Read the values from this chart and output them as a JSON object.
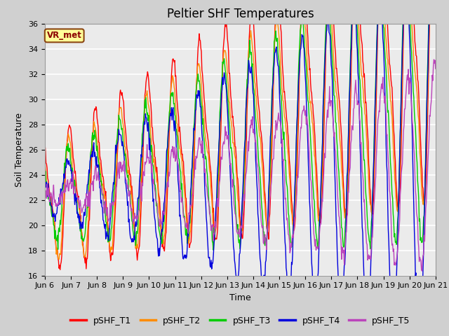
{
  "title": "Peltier SHF Temperatures",
  "xlabel": "Time",
  "ylabel": "Soil Temperature",
  "ylim": [
    16,
    36
  ],
  "annotation": "VR_met",
  "x_tick_labels": [
    "Jun 6",
    "Jun 7",
    "Jun 8",
    "Jun 9",
    "Jun 10",
    "Jun 11",
    "Jun 12",
    "Jun 13",
    "Jun 14",
    "Jun 15",
    "Jun 16",
    "Jun 17",
    "Jun 18",
    "Jun 19",
    "Jun 20",
    "Jun 21"
  ],
  "series_names": [
    "pSHF_T1",
    "pSHF_T2",
    "pSHF_T3",
    "pSHF_T4",
    "pSHF_T5"
  ],
  "series_colors": [
    "#ff0000",
    "#ff8c00",
    "#00cc00",
    "#0000dd",
    "#bb44bb"
  ],
  "series_lw": [
    1.0,
    1.0,
    1.0,
    1.0,
    1.0
  ],
  "fig_bg_color": "#d0d0d0",
  "plot_bg_color": "#ebebeb",
  "grid_color": "#ffffff",
  "title_fontsize": 12,
  "axis_label_fontsize": 9,
  "tick_fontsize": 8,
  "legend_fontsize": 9
}
